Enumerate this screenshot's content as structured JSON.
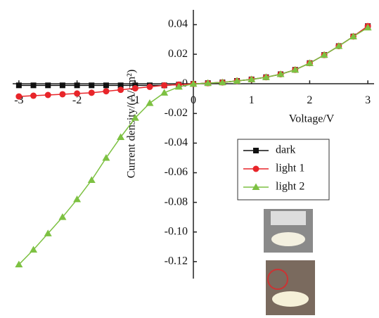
{
  "chart_data": {
    "type": "line",
    "x_label": "Voltage/V",
    "y_label": "Current density/(A/cm²)",
    "x": [
      -3,
      -2.75,
      -2.5,
      -2.25,
      -2,
      -1.75,
      -1.5,
      -1.25,
      -1,
      -0.75,
      -0.5,
      -0.25,
      0,
      0.25,
      0.5,
      0.75,
      1,
      1.25,
      1.5,
      1.75,
      2,
      2.25,
      2.5,
      2.75,
      3
    ],
    "series": [
      {
        "name": "dark",
        "color": "#111111",
        "marker": "square",
        "values": [
          -0.001,
          -0.001,
          -0.001,
          -0.001,
          -0.001,
          -0.001,
          -0.001,
          -0.001,
          -0.001,
          -0.001,
          -0.001,
          -0.0005,
          0,
          0.0005,
          0.001,
          0.002,
          0.003,
          0.0045,
          0.0065,
          0.0095,
          0.014,
          0.0195,
          0.0255,
          0.032,
          0.039
        ]
      },
      {
        "name": "light 1",
        "color": "#e8252a",
        "marker": "circle",
        "values": [
          -0.0085,
          -0.008,
          -0.0075,
          -0.007,
          -0.0065,
          -0.006,
          -0.005,
          -0.004,
          -0.003,
          -0.002,
          -0.001,
          -0.0005,
          0,
          0.0005,
          0.001,
          0.002,
          0.003,
          0.0045,
          0.0065,
          0.0095,
          0.014,
          0.0195,
          0.0255,
          0.032,
          0.039
        ]
      },
      {
        "name": "light 2",
        "color": "#7dc142",
        "marker": "triangle",
        "values": [
          -0.122,
          -0.112,
          -0.101,
          -0.09,
          -0.078,
          -0.065,
          -0.05,
          -0.036,
          -0.023,
          -0.013,
          -0.006,
          -0.002,
          0,
          0.0005,
          0.001,
          0.002,
          0.003,
          0.0045,
          0.0065,
          0.0095,
          0.014,
          0.0195,
          0.0255,
          0.032,
          0.038
        ]
      }
    ],
    "xlim": [
      -3.1,
      3.1
    ],
    "xticks": [
      -3,
      -2,
      -1,
      0,
      1,
      2,
      3
    ],
    "ylim": [
      -0.131,
      0.0495
    ],
    "yticks": [
      0.04,
      0.02,
      0,
      -0.02,
      -0.04,
      -0.06,
      -0.08,
      {
        "value": -0.1,
        "label": "-0.10"
      },
      -0.12
    ],
    "legend": "lower-right"
  }
}
